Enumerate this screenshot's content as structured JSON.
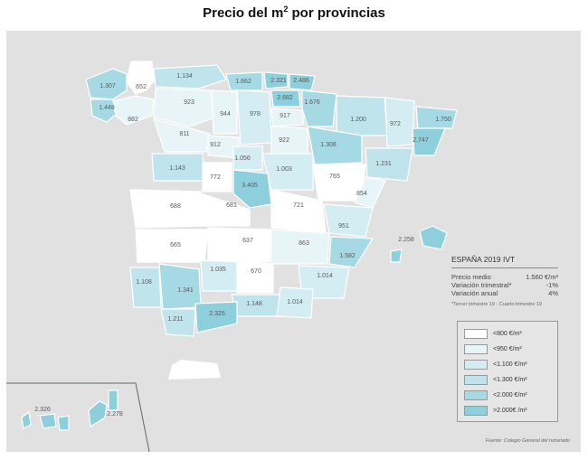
{
  "title": {
    "main": "Precio del m",
    "sup": "2",
    "rest": " por provincias"
  },
  "colors": {
    "c0": "#ffffff",
    "c1": "#e8f5f8",
    "c2": "#d3edf2",
    "c3": "#bfe4ec",
    "c4": "#a5d9e4",
    "c5": "#8dcfdc",
    "background": "#e1e1e1"
  },
  "provinces": [
    {
      "value": "652",
      "cls": "c0"
    },
    {
      "value": "1.307",
      "cls": "c4"
    },
    {
      "value": "1.134",
      "cls": "c3"
    },
    {
      "value": "1.662",
      "cls": "c4"
    },
    {
      "value": "2.321",
      "cls": "c5"
    },
    {
      "value": "2.486",
      "cls": "c5"
    },
    {
      "value": "1.448",
      "cls": "c4"
    },
    {
      "value": "923",
      "cls": "c1"
    },
    {
      "value": "2.882",
      "cls": "c5"
    },
    {
      "value": "1.676",
      "cls": "c4"
    },
    {
      "value": "882",
      "cls": "c1"
    },
    {
      "value": "944",
      "cls": "c1"
    },
    {
      "value": "978",
      "cls": "c2"
    },
    {
      "value": "917",
      "cls": "c1"
    },
    {
      "value": "1.200",
      "cls": "c3"
    },
    {
      "value": "972",
      "cls": "c2"
    },
    {
      "value": "1.750",
      "cls": "c4"
    },
    {
      "value": "811",
      "cls": "c1"
    },
    {
      "value": "912",
      "cls": "c1"
    },
    {
      "value": "922",
      "cls": "c1"
    },
    {
      "value": "1.308",
      "cls": "c4"
    },
    {
      "value": "2.747",
      "cls": "c5"
    },
    {
      "value": "1.143",
      "cls": "c3"
    },
    {
      "value": "1.056",
      "cls": "c2"
    },
    {
      "value": "1.003",
      "cls": "c2"
    },
    {
      "value": "1.231",
      "cls": "c3"
    },
    {
      "value": "772",
      "cls": "c0"
    },
    {
      "value": "3.405",
      "cls": "c5"
    },
    {
      "value": "765",
      "cls": "c0"
    },
    {
      "value": "854",
      "cls": "c1"
    },
    {
      "value": "688",
      "cls": "c0"
    },
    {
      "value": "681",
      "cls": "c0"
    },
    {
      "value": "721",
      "cls": "c0"
    },
    {
      "value": "951",
      "cls": "c2"
    },
    {
      "value": "665",
      "cls": "c0"
    },
    {
      "value": "637",
      "cls": "c0"
    },
    {
      "value": "863",
      "cls": "c1"
    },
    {
      "value": "1.035",
      "cls": "c2"
    },
    {
      "value": "670",
      "cls": "c0"
    },
    {
      "value": "1.582",
      "cls": "c4"
    },
    {
      "value": "1.108",
      "cls": "c3"
    },
    {
      "value": "1.341",
      "cls": "c4"
    },
    {
      "value": "1.014",
      "cls": "c2"
    },
    {
      "value": "1.148",
      "cls": "c3"
    },
    {
      "value": "1.014",
      "cls": "c2"
    },
    {
      "value": "1.211",
      "cls": "c3"
    },
    {
      "value": "2.325",
      "cls": "c5"
    },
    {
      "value": "2.258",
      "cls": "c5"
    },
    {
      "value": "2.326",
      "cls": "c5"
    },
    {
      "value": "2.278",
      "cls": "c5"
    }
  ],
  "info": {
    "heading": "ESPAÑA 2019 IVT",
    "rows": [
      {
        "label": "Precio medio",
        "value": "1.560 €/m²"
      },
      {
        "label": "Variación trimestral*",
        "value": "-1%"
      },
      {
        "label": "Variación anual",
        "value": "4%"
      }
    ],
    "note": "*Tercer trimestre 19 - Cuarto trimestre 19"
  },
  "legend": [
    {
      "label": "<800 €/m²",
      "cls": "c0"
    },
    {
      "label": "<950 €/m²",
      "cls": "c1"
    },
    {
      "label": "<1.100 €/m²",
      "cls": "c2"
    },
    {
      "label": "<1.300 €/m²",
      "cls": "c3"
    },
    {
      "label": "<2.000 €/m²",
      "cls": "c4"
    },
    {
      "label": ">2.000€ /m²",
      "cls": "c5"
    }
  ],
  "source": "Fuente: Colegio General del notariado"
}
